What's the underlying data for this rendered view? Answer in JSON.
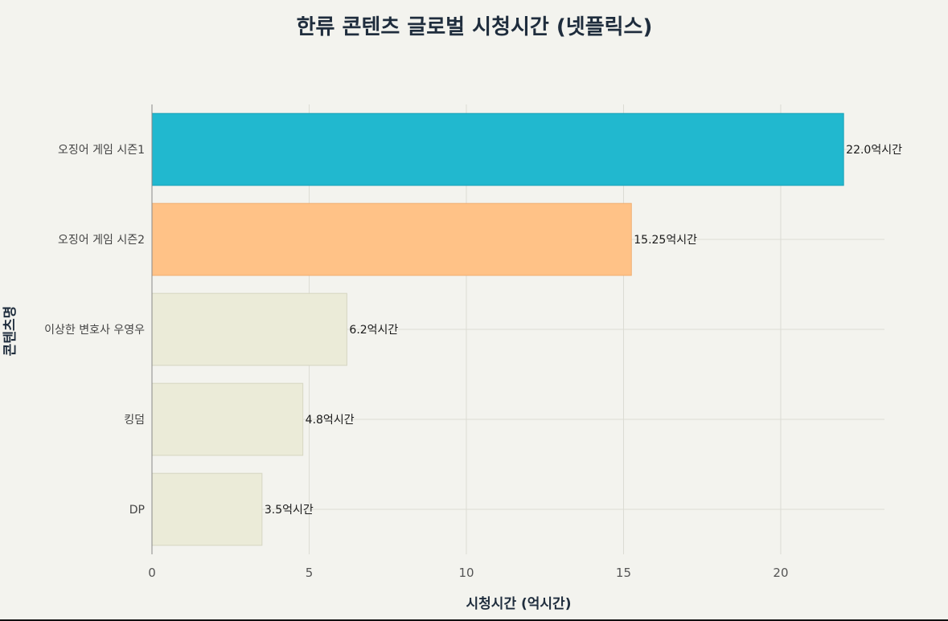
{
  "chart_data": {
    "type": "bar",
    "orientation": "horizontal",
    "title": "한류 콘텐츠 글로벌 시청시간 (넷플릭스)",
    "xlabel": "시청시간 (억시간)",
    "ylabel": "콘텐츠명",
    "xlim": [
      0,
      23.3
    ],
    "xticks": [
      0,
      5,
      10,
      15,
      20
    ],
    "grid": true,
    "categories": [
      "오징어 게임 시즌1",
      "오징어 게임 시즌2",
      "이상한 변호사 우영우",
      "킹덤",
      "DP"
    ],
    "values": [
      22.0,
      15.25,
      6.2,
      4.8,
      3.5
    ],
    "data_labels": [
      "22.0억시간",
      "15.25억시간",
      "6.2억시간",
      "4.8억시간",
      "3.5억시간"
    ],
    "colors": [
      "#21b8cf",
      "#ffc287",
      "#ebebd8",
      "#ebebd8",
      "#ebebd8"
    ],
    "border_colors": [
      "#1aa2b7",
      "#f0ae72",
      "#d6d6c2",
      "#d6d6c2",
      "#d6d6c2"
    ]
  }
}
